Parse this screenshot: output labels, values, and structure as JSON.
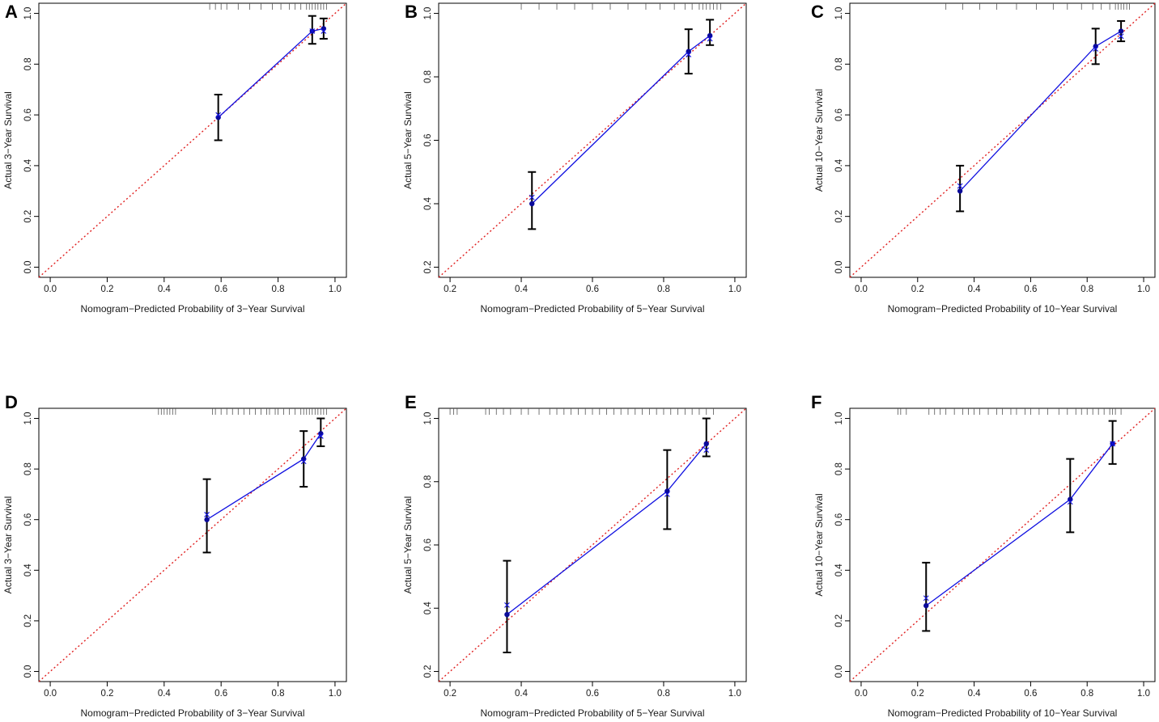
{
  "figure": {
    "line_color": "#1010e0",
    "point_color": "#0a0a9a",
    "ideal_color": "#e02020",
    "errorbar_color": "#000000",
    "rug_color": "#555555"
  },
  "chart_data": [
    {
      "type": "scatter",
      "panel_label": "A",
      "xlabel": "Nomogram−Predicted Probability of 3−Year Survival",
      "ylabel": "Actual 3−Year Survival",
      "xlim": [
        0,
        1
      ],
      "ylim": [
        0,
        1
      ],
      "xticks": [
        0,
        0.2,
        0.4,
        0.6,
        0.8,
        1.0
      ],
      "xtick_labels": [
        "0.0",
        "0.2",
        "0.4",
        "0.6",
        "0.8",
        "1.0"
      ],
      "yticks": [
        0,
        0.2,
        0.4,
        0.6,
        0.8,
        1.0
      ],
      "ytick_labels": [
        "0.0",
        "0.2",
        "0.4",
        "0.6",
        "0.8",
        "1.0"
      ],
      "points": [
        {
          "x": 0.59,
          "y": 0.59,
          "lo": 0.5,
          "hi": 0.68,
          "corrected": 0.6
        },
        {
          "x": 0.92,
          "y": 0.93,
          "lo": 0.88,
          "hi": 0.99,
          "corrected": 0.93
        },
        {
          "x": 0.96,
          "y": 0.94,
          "lo": 0.9,
          "hi": 0.98,
          "corrected": 0.93
        }
      ],
      "rug": [
        0.56,
        0.58,
        0.6,
        0.62,
        0.66,
        0.7,
        0.74,
        0.78,
        0.81,
        0.84,
        0.86,
        0.88,
        0.9,
        0.91,
        0.92,
        0.93,
        0.94,
        0.95,
        0.96,
        0.97
      ]
    },
    {
      "type": "scatter",
      "panel_label": "B",
      "xlabel": "Nomogram−Predicted Probability of 5−Year Survival",
      "ylabel": "Actual 5−Year Survival",
      "xlim": [
        0.2,
        1
      ],
      "ylim": [
        0.2,
        1
      ],
      "xticks": [
        0.2,
        0.4,
        0.6,
        0.8,
        1.0
      ],
      "xtick_labels": [
        "0.2",
        "0.4",
        "0.6",
        "0.8",
        "1.0"
      ],
      "yticks": [
        0.2,
        0.4,
        0.6,
        0.8,
        1.0
      ],
      "ytick_labels": [
        "0.2",
        "0.4",
        "0.6",
        "0.8",
        "1.0"
      ],
      "points": [
        {
          "x": 0.43,
          "y": 0.4,
          "lo": 0.32,
          "hi": 0.5,
          "corrected": 0.42
        },
        {
          "x": 0.87,
          "y": 0.88,
          "lo": 0.81,
          "hi": 0.95,
          "corrected": 0.87
        },
        {
          "x": 0.93,
          "y": 0.93,
          "lo": 0.9,
          "hi": 0.98,
          "corrected": 0.92
        }
      ],
      "rug": [
        0.4,
        0.45,
        0.5,
        0.55,
        0.6,
        0.65,
        0.7,
        0.75,
        0.79,
        0.83,
        0.86,
        0.88,
        0.9,
        0.91,
        0.92,
        0.93,
        0.94,
        0.95,
        0.96
      ]
    },
    {
      "type": "scatter",
      "panel_label": "C",
      "xlabel": "Nomogram−Predicted Probability of 10−Year Survival",
      "ylabel": "Actual 10−Year Survival",
      "xlim": [
        0,
        1
      ],
      "ylim": [
        0,
        1
      ],
      "xticks": [
        0,
        0.2,
        0.4,
        0.6,
        0.8,
        1.0
      ],
      "xtick_labels": [
        "0.0",
        "0.2",
        "0.4",
        "0.6",
        "0.8",
        "1.0"
      ],
      "yticks": [
        0,
        0.2,
        0.4,
        0.6,
        0.8,
        1.0
      ],
      "ytick_labels": [
        "0.0",
        "0.2",
        "0.4",
        "0.6",
        "0.8",
        "1.0"
      ],
      "points": [
        {
          "x": 0.35,
          "y": 0.3,
          "lo": 0.22,
          "hi": 0.4,
          "corrected": 0.32
        },
        {
          "x": 0.83,
          "y": 0.87,
          "lo": 0.8,
          "hi": 0.94,
          "corrected": 0.86
        },
        {
          "x": 0.92,
          "y": 0.93,
          "lo": 0.89,
          "hi": 0.97,
          "corrected": 0.91
        }
      ],
      "rug": [
        0.3,
        0.36,
        0.42,
        0.48,
        0.55,
        0.62,
        0.68,
        0.73,
        0.78,
        0.82,
        0.85,
        0.88,
        0.9,
        0.91,
        0.92,
        0.93,
        0.94,
        0.95
      ]
    },
    {
      "type": "scatter",
      "panel_label": "D",
      "xlabel": "Nomogram−Predicted Probability of 3−Year Survival",
      "ylabel": "Actual 3−Year Survival",
      "xlim": [
        0,
        1
      ],
      "ylim": [
        0,
        1
      ],
      "xticks": [
        0,
        0.2,
        0.4,
        0.6,
        0.8,
        1.0
      ],
      "xtick_labels": [
        "0.0",
        "0.2",
        "0.4",
        "0.6",
        "0.8",
        "1.0"
      ],
      "yticks": [
        0,
        0.2,
        0.4,
        0.6,
        0.8,
        1.0
      ],
      "ytick_labels": [
        "0.0",
        "0.2",
        "0.4",
        "0.6",
        "0.8",
        "1.0"
      ],
      "points": [
        {
          "x": 0.55,
          "y": 0.6,
          "lo": 0.47,
          "hi": 0.76,
          "corrected": 0.62
        },
        {
          "x": 0.89,
          "y": 0.84,
          "lo": 0.73,
          "hi": 0.95,
          "corrected": 0.83
        },
        {
          "x": 0.95,
          "y": 0.94,
          "lo": 0.89,
          "hi": 1.0,
          "corrected": 0.93
        }
      ],
      "rug": [
        0.38,
        0.39,
        0.4,
        0.41,
        0.42,
        0.43,
        0.44,
        0.57,
        0.58,
        0.6,
        0.62,
        0.64,
        0.66,
        0.68,
        0.7,
        0.72,
        0.74,
        0.76,
        0.77,
        0.79,
        0.8,
        0.82,
        0.84,
        0.86,
        0.88,
        0.89,
        0.9,
        0.91,
        0.92,
        0.93,
        0.94,
        0.95,
        0.96,
        0.97
      ]
    },
    {
      "type": "scatter",
      "panel_label": "E",
      "xlabel": "Nomogram−Predicted Probability of 5−Year Survival",
      "ylabel": "Actual 5−Year Survival",
      "xlim": [
        0.2,
        1
      ],
      "ylim": [
        0.2,
        1
      ],
      "xticks": [
        0.2,
        0.4,
        0.6,
        0.8,
        1.0
      ],
      "xtick_labels": [
        "0.2",
        "0.4",
        "0.6",
        "0.8",
        "1.0"
      ],
      "yticks": [
        0.2,
        0.4,
        0.6,
        0.8,
        1.0
      ],
      "ytick_labels": [
        "0.2",
        "0.4",
        "0.6",
        "0.8",
        "1.0"
      ],
      "points": [
        {
          "x": 0.36,
          "y": 0.38,
          "lo": 0.26,
          "hi": 0.55,
          "corrected": 0.41
        },
        {
          "x": 0.81,
          "y": 0.77,
          "lo": 0.65,
          "hi": 0.9,
          "corrected": 0.76
        },
        {
          "x": 0.92,
          "y": 0.92,
          "lo": 0.88,
          "hi": 1.0,
          "corrected": 0.9
        }
      ],
      "rug": [
        0.2,
        0.21,
        0.22,
        0.3,
        0.31,
        0.33,
        0.35,
        0.37,
        0.4,
        0.42,
        0.45,
        0.48,
        0.5,
        0.52,
        0.54,
        0.56,
        0.58,
        0.6,
        0.62,
        0.64,
        0.66,
        0.68,
        0.7,
        0.72,
        0.74,
        0.76,
        0.78,
        0.8,
        0.82,
        0.84,
        0.86,
        0.88,
        0.9,
        0.92,
        0.94
      ]
    },
    {
      "type": "scatter",
      "panel_label": "F",
      "xlabel": "Nomogram−Predicted Probability of 10−Year Survival",
      "ylabel": "Actual 10−Year Survival",
      "xlim": [
        0,
        1
      ],
      "ylim": [
        0,
        1
      ],
      "xticks": [
        0,
        0.2,
        0.4,
        0.6,
        0.8,
        1.0
      ],
      "xtick_labels": [
        "0.0",
        "0.2",
        "0.4",
        "0.6",
        "0.8",
        "1.0"
      ],
      "yticks": [
        0,
        0.2,
        0.4,
        0.6,
        0.8,
        1.0
      ],
      "ytick_labels": [
        "0.0",
        "0.2",
        "0.4",
        "0.6",
        "0.8",
        "1.0"
      ],
      "points": [
        {
          "x": 0.23,
          "y": 0.26,
          "lo": 0.16,
          "hi": 0.43,
          "corrected": 0.29
        },
        {
          "x": 0.74,
          "y": 0.68,
          "lo": 0.55,
          "hi": 0.84,
          "corrected": 0.67
        },
        {
          "x": 0.89,
          "y": 0.9,
          "lo": 0.82,
          "hi": 0.99,
          "corrected": 0.9
        }
      ],
      "rug": [
        0.13,
        0.14,
        0.16,
        0.24,
        0.26,
        0.28,
        0.3,
        0.33,
        0.36,
        0.38,
        0.4,
        0.42,
        0.45,
        0.48,
        0.5,
        0.53,
        0.55,
        0.58,
        0.6,
        0.63,
        0.66,
        0.7,
        0.73,
        0.76,
        0.78,
        0.8,
        0.82,
        0.84,
        0.86,
        0.88,
        0.89,
        0.9,
        0.92
      ]
    }
  ]
}
